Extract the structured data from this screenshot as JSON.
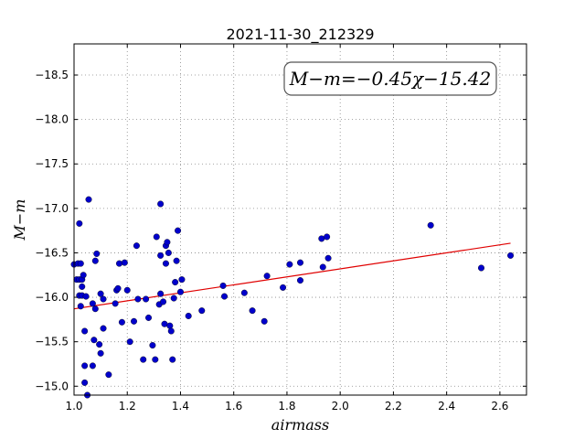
{
  "chart_data": {
    "type": "scatter",
    "title": "2021-11-30_212329",
    "xlabel": "airmass",
    "ylabel": "M−m",
    "xlim": [
      1.0,
      2.7
    ],
    "ylim": [
      -18.85,
      -14.9
    ],
    "y_inverted": true,
    "grid": true,
    "x_ticks": [
      "1.0",
      "1.2",
      "1.4",
      "1.6",
      "1.8",
      "2.0",
      "2.2",
      "2.4",
      "2.6"
    ],
    "y_ticks": [
      "−15.0",
      "−15.5",
      "−16.0",
      "−16.5",
      "−17.0",
      "−17.5",
      "−18.0",
      "−18.5"
    ],
    "annotation": "M−m=−0.45χ−15.42",
    "fit": {
      "slope": -0.45,
      "intercept": -15.42,
      "x_range": [
        1.0,
        2.64
      ],
      "color": "#e00000"
    },
    "point_color": "#0000cc",
    "points": [
      [
        1.0,
        -16.37
      ],
      [
        1.01,
        -16.2
      ],
      [
        1.015,
        -16.38
      ],
      [
        1.02,
        -16.02
      ],
      [
        1.02,
        -16.2
      ],
      [
        1.025,
        -15.9
      ],
      [
        1.025,
        -16.38
      ],
      [
        1.02,
        -16.83
      ],
      [
        1.03,
        -16.12
      ],
      [
        1.03,
        -16.2
      ],
      [
        1.03,
        -16.02
      ],
      [
        1.035,
        -16.25
      ],
      [
        1.04,
        -15.04
      ],
      [
        1.04,
        -15.23
      ],
      [
        1.04,
        -15.62
      ],
      [
        1.045,
        -16.01
      ],
      [
        1.05,
        -14.9
      ],
      [
        1.055,
        -17.1
      ],
      [
        1.07,
        -15.23
      ],
      [
        1.07,
        -15.93
      ],
      [
        1.075,
        -15.52
      ],
      [
        1.08,
        -15.87
      ],
      [
        1.08,
        -16.41
      ],
      [
        1.085,
        -16.49
      ],
      [
        1.095,
        -15.47
      ],
      [
        1.1,
        -15.37
      ],
      [
        1.1,
        -16.04
      ],
      [
        1.11,
        -15.65
      ],
      [
        1.11,
        -15.98
      ],
      [
        1.13,
        -15.13
      ],
      [
        1.155,
        -15.93
      ],
      [
        1.16,
        -16.08
      ],
      [
        1.165,
        -16.1
      ],
      [
        1.17,
        -16.38
      ],
      [
        1.18,
        -15.72
      ],
      [
        1.19,
        -16.39
      ],
      [
        1.2,
        -16.08
      ],
      [
        1.21,
        -15.5
      ],
      [
        1.225,
        -15.73
      ],
      [
        1.235,
        -16.58
      ],
      [
        1.24,
        -15.98
      ],
      [
        1.26,
        -15.3
      ],
      [
        1.27,
        -15.98
      ],
      [
        1.28,
        -15.77
      ],
      [
        1.295,
        -15.46
      ],
      [
        1.305,
        -15.3
      ],
      [
        1.31,
        -16.68
      ],
      [
        1.32,
        -15.92
      ],
      [
        1.325,
        -16.04
      ],
      [
        1.325,
        -16.47
      ],
      [
        1.325,
        -17.05
      ],
      [
        1.335,
        -15.95
      ],
      [
        1.34,
        -15.7
      ],
      [
        1.345,
        -16.38
      ],
      [
        1.345,
        -16.58
      ],
      [
        1.35,
        -16.62
      ],
      [
        1.355,
        -16.5
      ],
      [
        1.36,
        -15.68
      ],
      [
        1.365,
        -15.62
      ],
      [
        1.37,
        -15.3
      ],
      [
        1.375,
        -15.99
      ],
      [
        1.38,
        -16.17
      ],
      [
        1.385,
        -16.41
      ],
      [
        1.39,
        -16.75
      ],
      [
        1.4,
        -16.06
      ],
      [
        1.405,
        -16.2
      ],
      [
        1.43,
        -15.79
      ],
      [
        1.48,
        -15.85
      ],
      [
        1.56,
        -16.13
      ],
      [
        1.565,
        -16.01
      ],
      [
        1.64,
        -16.05
      ],
      [
        1.67,
        -15.85
      ],
      [
        1.715,
        -15.73
      ],
      [
        1.725,
        -16.24
      ],
      [
        1.785,
        -16.11
      ],
      [
        1.81,
        -16.37
      ],
      [
        1.85,
        -16.19
      ],
      [
        1.85,
        -16.39
      ],
      [
        1.93,
        -16.66
      ],
      [
        1.935,
        -16.34
      ],
      [
        1.95,
        -16.68
      ],
      [
        1.955,
        -16.44
      ],
      [
        2.34,
        -16.81
      ],
      [
        2.53,
        -16.33
      ],
      [
        2.64,
        -16.47
      ]
    ]
  }
}
